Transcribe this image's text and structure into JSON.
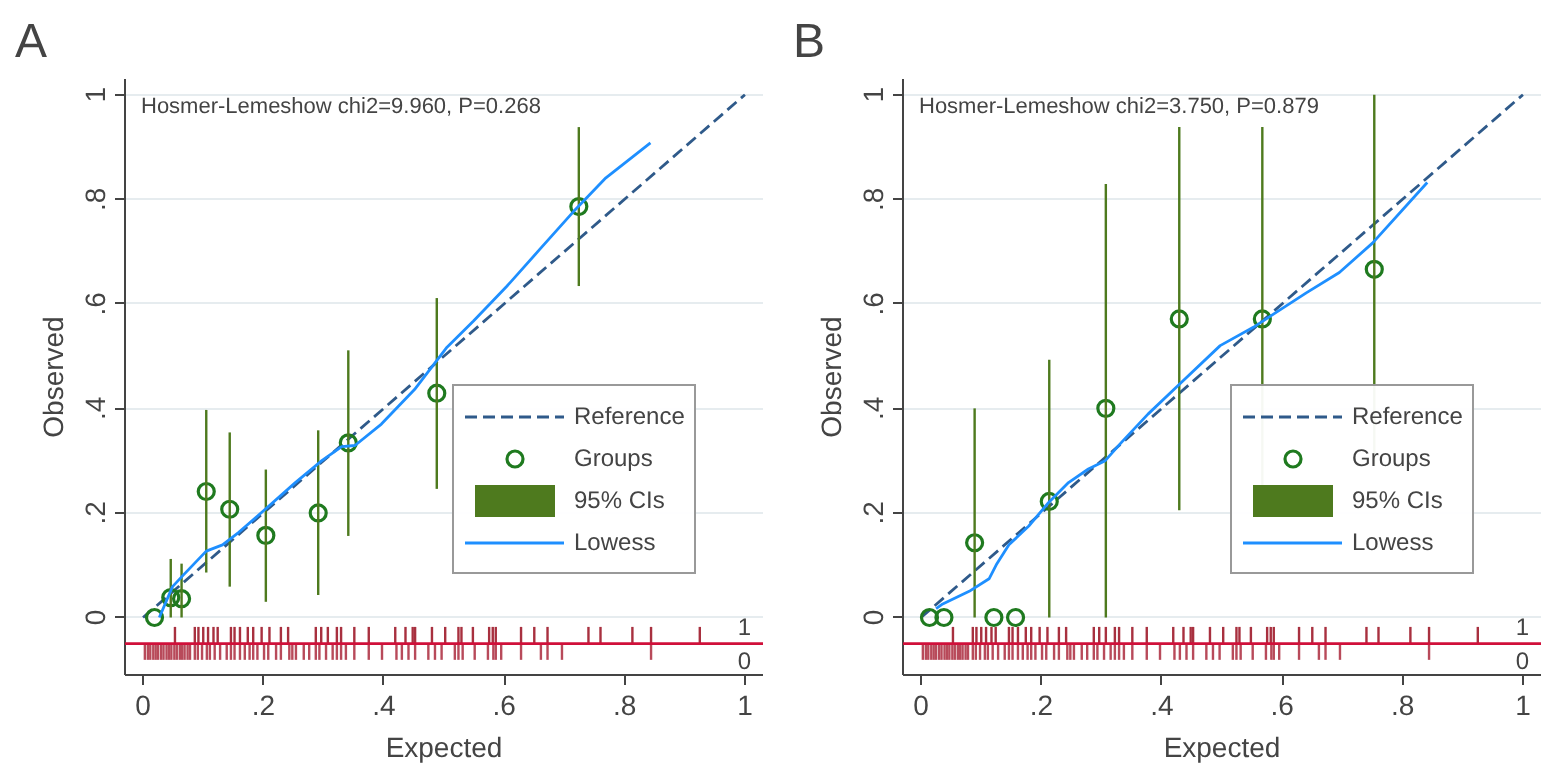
{
  "chart_data": [
    {
      "type": "scatter",
      "title": "A",
      "xlabel": "Expected",
      "ylabel": "Observed",
      "xlim": [
        -0.03,
        1.03
      ],
      "ylim": [
        -0.11,
        1.03
      ],
      "xticks": [
        0,
        {
          "value": 0.2,
          "label": ".2"
        },
        {
          "value": 0.4,
          "label": ".4"
        },
        {
          "value": 0.6,
          "label": ".6"
        },
        {
          "value": 0.8,
          "label": ".8"
        },
        1
      ],
      "yticks": [
        0,
        {
          "value": 0.2,
          "label": ".2"
        },
        {
          "value": 0.4,
          "label": ".4"
        },
        {
          "value": 0.6,
          "label": ".6"
        },
        {
          "value": 0.8,
          "label": ".8"
        },
        1
      ],
      "grid": "y",
      "legend": "bottom right",
      "annotations": [
        "Hosmer-Lemeshow chi2=9.960, P=0.268",
        "1",
        "0"
      ],
      "ref_lines": [
        {
          "axis": "y",
          "value": -0.05,
          "color": "#d0103a"
        }
      ],
      "series": [
        {
          "name": "Reference",
          "type": "line",
          "line_style": "dashed",
          "color": "#2f5a8a",
          "x": [
            0,
            1
          ],
          "values": [
            0,
            1
          ]
        },
        {
          "name": "Groups",
          "marker": "circle",
          "color": "#1f7a1f",
          "x": [
            0.019,
            0.046,
            0.064,
            0.105,
            0.144,
            0.204,
            0.291,
            0.341,
            0.488,
            0.724
          ],
          "values": [
            0,
            0.038,
            0.036,
            0.241,
            0.207,
            0.157,
            0.2,
            0.334,
            0.429,
            0.786
          ]
        },
        {
          "name": "95% CIs",
          "type": "bar",
          "color": "#4e7a1e",
          "x": [
            0.046,
            0.064,
            0.105,
            0.144,
            0.204,
            0.291,
            0.341,
            0.488,
            0.724
          ],
          "base": [
            0,
            0,
            0.086,
            0.059,
            0.03,
            0.043,
            0.156,
            0.246,
            0.634
          ],
          "values": [
            0.112,
            0.103,
            0.311,
            0.295,
            0.253,
            0.315,
            0.355,
            0.365,
            0.304
          ]
        },
        {
          "name": "Lowess",
          "type": "line",
          "line_style": "solid",
          "color": "#1e8fff",
          "x": [
            0.027,
            0.049,
            0.066,
            0.105,
            0.132,
            0.159,
            0.203,
            0.253,
            0.297,
            0.33,
            0.352,
            0.396,
            0.451,
            0.505,
            0.549,
            0.604,
            0.659,
            0.714,
            0.769,
            0.843
          ],
          "values": [
            0,
            0.059,
            0.08,
            0.127,
            0.139,
            0.163,
            0.207,
            0.258,
            0.3,
            0.327,
            0.329,
            0.37,
            0.436,
            0.517,
            0.567,
            0.633,
            0.704,
            0.775,
            0.841,
            0.908
          ]
        },
        {
          "type": "bar",
          "color": "#a8303f",
          "x": [
            0.053,
            0.086,
            0.092,
            0.1,
            0.108,
            0.117,
            0.124,
            0.146,
            0.152,
            0.161,
            0.174,
            0.183,
            0.197,
            0.21,
            0.229,
            0.241,
            0.287,
            0.296,
            0.307,
            0.322,
            0.329,
            0.351,
            0.375,
            0.419,
            0.436,
            0.448,
            0.452,
            0.48,
            0.502,
            0.524,
            0.529,
            0.548,
            0.575,
            0.581,
            0.586,
            0.628,
            0.65,
            0.672,
            0.74,
            0.76,
            0.813,
            0.844,
            0.925
          ],
          "base": [
            -0.05,
            -0.05,
            -0.05,
            -0.05,
            -0.05,
            -0.05,
            -0.05,
            -0.05,
            -0.05,
            -0.05,
            -0.05,
            -0.05,
            -0.05,
            -0.05,
            -0.05,
            -0.05,
            -0.05,
            -0.05,
            -0.05,
            -0.05,
            -0.05,
            -0.05,
            -0.05,
            -0.05,
            -0.05,
            -0.05,
            -0.05,
            -0.05,
            -0.05,
            -0.05,
            -0.05,
            -0.05,
            -0.05,
            -0.05,
            -0.05,
            -0.05,
            -0.05,
            -0.05,
            -0.05,
            -0.05,
            -0.05,
            -0.05,
            -0.05
          ],
          "values": [
            0.032,
            0.032,
            0.032,
            0.032,
            0.032,
            0.032,
            0.032,
            0.032,
            0.032,
            0.032,
            0.032,
            0.032,
            0.032,
            0.032,
            0.032,
            0.032,
            0.032,
            0.032,
            0.032,
            0.032,
            0.032,
            0.032,
            0.032,
            0.032,
            0.032,
            0.032,
            0.032,
            0.032,
            0.032,
            0.032,
            0.032,
            0.032,
            0.032,
            0.032,
            0.032,
            0.032,
            0.032,
            0.032,
            0.032,
            0.032,
            0.032,
            0.032,
            0.032
          ]
        },
        {
          "type": "bar",
          "color": "#b84a5a",
          "x": [
            0.003,
            0.008,
            0.012,
            0.017,
            0.021,
            0.025,
            0.03,
            0.034,
            0.039,
            0.043,
            0.047,
            0.052,
            0.056,
            0.061,
            0.065,
            0.069,
            0.074,
            0.078,
            0.086,
            0.091,
            0.098,
            0.106,
            0.111,
            0.119,
            0.128,
            0.139,
            0.146,
            0.152,
            0.161,
            0.169,
            0.177,
            0.183,
            0.19,
            0.201,
            0.208,
            0.221,
            0.229,
            0.243,
            0.248,
            0.254,
            0.267,
            0.276,
            0.287,
            0.293,
            0.304,
            0.315,
            0.322,
            0.329,
            0.337,
            0.351,
            0.375,
            0.397,
            0.421,
            0.43,
            0.441,
            0.452,
            0.474,
            0.485,
            0.496,
            0.518,
            0.524,
            0.531,
            0.551,
            0.573,
            0.582,
            0.586,
            0.595,
            0.628,
            0.661,
            0.672,
            0.696,
            0.844
          ],
          "base": [
            -0.05,
            -0.05,
            -0.05,
            -0.05,
            -0.05,
            -0.05,
            -0.05,
            -0.05,
            -0.05,
            -0.05,
            -0.05,
            -0.05,
            -0.05,
            -0.05,
            -0.05,
            -0.05,
            -0.05,
            -0.05,
            -0.05,
            -0.05,
            -0.05,
            -0.05,
            -0.05,
            -0.05,
            -0.05,
            -0.05,
            -0.05,
            -0.05,
            -0.05,
            -0.05,
            -0.05,
            -0.05,
            -0.05,
            -0.05,
            -0.05,
            -0.05,
            -0.05,
            -0.05,
            -0.05,
            -0.05,
            -0.05,
            -0.05,
            -0.05,
            -0.05,
            -0.05,
            -0.05,
            -0.05,
            -0.05,
            -0.05,
            -0.05,
            -0.05,
            -0.05,
            -0.05,
            -0.05,
            -0.05,
            -0.05,
            -0.05,
            -0.05,
            -0.05,
            -0.05,
            -0.05,
            -0.05,
            -0.05,
            -0.05,
            -0.05,
            -0.05,
            -0.05,
            -0.05,
            -0.05,
            -0.05,
            -0.05,
            -0.05
          ],
          "values": [
            -0.031,
            -0.031,
            -0.031,
            -0.031,
            -0.031,
            -0.031,
            -0.031,
            -0.031,
            -0.031,
            -0.031,
            -0.031,
            -0.031,
            -0.031,
            -0.031,
            -0.031,
            -0.031,
            -0.031,
            -0.031,
            -0.031,
            -0.031,
            -0.031,
            -0.031,
            -0.031,
            -0.031,
            -0.031,
            -0.031,
            -0.031,
            -0.031,
            -0.031,
            -0.031,
            -0.031,
            -0.031,
            -0.031,
            -0.031,
            -0.031,
            -0.031,
            -0.031,
            -0.031,
            -0.031,
            -0.031,
            -0.031,
            -0.031,
            -0.031,
            -0.031,
            -0.031,
            -0.031,
            -0.031,
            -0.031,
            -0.031,
            -0.031,
            -0.031,
            -0.031,
            -0.031,
            -0.031,
            -0.031,
            -0.031,
            -0.031,
            -0.031,
            -0.031,
            -0.031,
            -0.031,
            -0.031,
            -0.031,
            -0.031,
            -0.031,
            -0.031,
            -0.031,
            -0.031,
            -0.031,
            -0.031,
            -0.031,
            -0.031
          ]
        }
      ]
    },
    {
      "type": "scatter",
      "title": "B",
      "xlabel": "Expected",
      "ylabel": "Observed",
      "xlim": [
        -0.03,
        1.03
      ],
      "ylim": [
        -0.11,
        1.03
      ],
      "xticks": [
        0,
        {
          "value": 0.2,
          "label": ".2"
        },
        {
          "value": 0.4,
          "label": ".4"
        },
        {
          "value": 0.6,
          "label": ".6"
        },
        {
          "value": 0.8,
          "label": ".8"
        },
        1
      ],
      "yticks": [
        0,
        {
          "value": 0.2,
          "label": ".2"
        },
        {
          "value": 0.4,
          "label": ".4"
        },
        {
          "value": 0.6,
          "label": ".6"
        },
        {
          "value": 0.8,
          "label": ".8"
        },
        1
      ],
      "grid": "y",
      "legend": "bottom right",
      "annotations": [
        "Hosmer-Lemeshow chi2=3.750, P=0.879",
        "1",
        "0"
      ],
      "ref_lines": [
        {
          "axis": "y",
          "value": -0.05,
          "color": "#d0103a"
        }
      ],
      "series": [
        {
          "name": "Reference",
          "type": "line",
          "line_style": "dashed",
          "color": "#2f5a8a",
          "x": [
            0,
            1
          ],
          "values": [
            0,
            1
          ]
        },
        {
          "name": "Groups",
          "marker": "circle",
          "color": "#1f7a1f",
          "x": [
            0.014,
            0.038,
            0.089,
            0.121,
            0.157,
            0.213,
            0.307,
            0.429,
            0.567,
            0.753
          ],
          "values": [
            0,
            0,
            0.143,
            0,
            0,
            0.222,
            0.4,
            0.571,
            0.571,
            0.666
          ]
        },
        {
          "name": "95% CIs",
          "type": "bar",
          "color": "#4e7a1e",
          "x": [
            0.089,
            0.213,
            0.307,
            0.429,
            0.567,
            0.753
          ],
          "base": [
            0,
            0,
            0,
            0.205,
            0.205,
            0.29
          ],
          "values": [
            0.4,
            0.493,
            0.829,
            0.733,
            0.733,
            0.71
          ]
        },
        {
          "name": "Lowess",
          "type": "line",
          "line_style": "solid",
          "color": "#1e8fff",
          "x": [
            0.025,
            0.036,
            0.08,
            0.113,
            0.126,
            0.146,
            0.179,
            0.212,
            0.245,
            0.278,
            0.306,
            0.333,
            0.377,
            0.431,
            0.497,
            0.552,
            0.64,
            0.695,
            0.75,
            0.841
          ],
          "values": [
            0.017,
            0.026,
            0.05,
            0.074,
            0.103,
            0.139,
            0.175,
            0.22,
            0.258,
            0.284,
            0.3,
            0.335,
            0.389,
            0.448,
            0.52,
            0.555,
            0.621,
            0.66,
            0.716,
            0.832
          ]
        },
        {
          "type": "bar",
          "color": "#a8303f",
          "x": [
            0.053,
            0.086,
            0.092,
            0.1,
            0.108,
            0.117,
            0.124,
            0.146,
            0.152,
            0.161,
            0.174,
            0.183,
            0.197,
            0.21,
            0.229,
            0.241,
            0.287,
            0.296,
            0.307,
            0.322,
            0.329,
            0.351,
            0.375,
            0.419,
            0.436,
            0.448,
            0.452,
            0.48,
            0.502,
            0.524,
            0.529,
            0.548,
            0.575,
            0.581,
            0.586,
            0.628,
            0.65,
            0.672,
            0.74,
            0.76,
            0.813,
            0.844,
            0.925
          ],
          "base": [
            -0.05,
            -0.05,
            -0.05,
            -0.05,
            -0.05,
            -0.05,
            -0.05,
            -0.05,
            -0.05,
            -0.05,
            -0.05,
            -0.05,
            -0.05,
            -0.05,
            -0.05,
            -0.05,
            -0.05,
            -0.05,
            -0.05,
            -0.05,
            -0.05,
            -0.05,
            -0.05,
            -0.05,
            -0.05,
            -0.05,
            -0.05,
            -0.05,
            -0.05,
            -0.05,
            -0.05,
            -0.05,
            -0.05,
            -0.05,
            -0.05,
            -0.05,
            -0.05,
            -0.05,
            -0.05,
            -0.05,
            -0.05,
            -0.05,
            -0.05
          ],
          "values": [
            0.032,
            0.032,
            0.032,
            0.032,
            0.032,
            0.032,
            0.032,
            0.032,
            0.032,
            0.032,
            0.032,
            0.032,
            0.032,
            0.032,
            0.032,
            0.032,
            0.032,
            0.032,
            0.032,
            0.032,
            0.032,
            0.032,
            0.032,
            0.032,
            0.032,
            0.032,
            0.032,
            0.032,
            0.032,
            0.032,
            0.032,
            0.032,
            0.032,
            0.032,
            0.032,
            0.032,
            0.032,
            0.032,
            0.032,
            0.032,
            0.032,
            0.032,
            0.032
          ]
        },
        {
          "type": "bar",
          "color": "#b84a5a",
          "x": [
            0.003,
            0.008,
            0.012,
            0.017,
            0.021,
            0.025,
            0.03,
            0.034,
            0.039,
            0.043,
            0.047,
            0.052,
            0.056,
            0.061,
            0.065,
            0.069,
            0.074,
            0.078,
            0.086,
            0.091,
            0.098,
            0.106,
            0.111,
            0.119,
            0.128,
            0.139,
            0.146,
            0.152,
            0.161,
            0.169,
            0.177,
            0.183,
            0.19,
            0.201,
            0.208,
            0.221,
            0.229,
            0.243,
            0.248,
            0.254,
            0.267,
            0.276,
            0.287,
            0.293,
            0.304,
            0.315,
            0.322,
            0.329,
            0.337,
            0.351,
            0.375,
            0.397,
            0.421,
            0.43,
            0.441,
            0.452,
            0.474,
            0.485,
            0.496,
            0.518,
            0.524,
            0.531,
            0.551,
            0.573,
            0.582,
            0.586,
            0.595,
            0.628,
            0.661,
            0.672,
            0.696,
            0.844
          ],
          "base": [
            -0.05,
            -0.05,
            -0.05,
            -0.05,
            -0.05,
            -0.05,
            -0.05,
            -0.05,
            -0.05,
            -0.05,
            -0.05,
            -0.05,
            -0.05,
            -0.05,
            -0.05,
            -0.05,
            -0.05,
            -0.05,
            -0.05,
            -0.05,
            -0.05,
            -0.05,
            -0.05,
            -0.05,
            -0.05,
            -0.05,
            -0.05,
            -0.05,
            -0.05,
            -0.05,
            -0.05,
            -0.05,
            -0.05,
            -0.05,
            -0.05,
            -0.05,
            -0.05,
            -0.05,
            -0.05,
            -0.05,
            -0.05,
            -0.05,
            -0.05,
            -0.05,
            -0.05,
            -0.05,
            -0.05,
            -0.05,
            -0.05,
            -0.05,
            -0.05,
            -0.05,
            -0.05,
            -0.05,
            -0.05,
            -0.05,
            -0.05,
            -0.05,
            -0.05,
            -0.05,
            -0.05,
            -0.05,
            -0.05,
            -0.05,
            -0.05,
            -0.05,
            -0.05,
            -0.05,
            -0.05,
            -0.05,
            -0.05,
            -0.05
          ],
          "values": [
            -0.031,
            -0.031,
            -0.031,
            -0.031,
            -0.031,
            -0.031,
            -0.031,
            -0.031,
            -0.031,
            -0.031,
            -0.031,
            -0.031,
            -0.031,
            -0.031,
            -0.031,
            -0.031,
            -0.031,
            -0.031,
            -0.031,
            -0.031,
            -0.031,
            -0.031,
            -0.031,
            -0.031,
            -0.031,
            -0.031,
            -0.031,
            -0.031,
            -0.031,
            -0.031,
            -0.031,
            -0.031,
            -0.031,
            -0.031,
            -0.031,
            -0.031,
            -0.031,
            -0.031,
            -0.031,
            -0.031,
            -0.031,
            -0.031,
            -0.031,
            -0.031,
            -0.031,
            -0.031,
            -0.031,
            -0.031,
            -0.031,
            -0.031,
            -0.031,
            -0.031,
            -0.031,
            -0.031,
            -0.031,
            -0.031,
            -0.031,
            -0.031,
            -0.031,
            -0.031,
            -0.031,
            -0.031,
            -0.031,
            -0.031,
            -0.031,
            -0.031,
            -0.031,
            -0.031,
            -0.031,
            -0.031,
            -0.031,
            -0.031
          ]
        }
      ]
    }
  ]
}
